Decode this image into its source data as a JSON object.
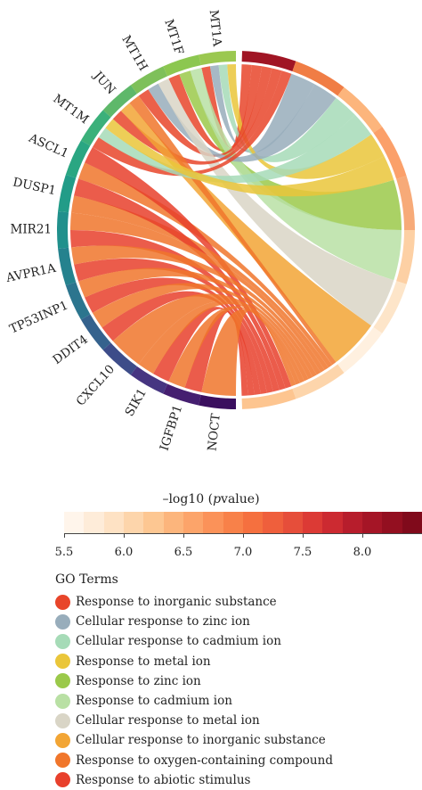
{
  "genes": [
    {
      "name": "MT1A",
      "color": "#9bc850"
    },
    {
      "name": "MT1F",
      "color": "#8cc750"
    },
    {
      "name": "MT1H",
      "color": "#7ec05a"
    },
    {
      "name": "JUN",
      "color": "#5eb86a"
    },
    {
      "name": "MT1M",
      "color": "#3bb07a"
    },
    {
      "name": "ASCL1",
      "color": "#2aa682"
    },
    {
      "name": "DUSP1",
      "color": "#229c88"
    },
    {
      "name": "MIR21",
      "color": "#20908c"
    },
    {
      "name": "AVPR1A",
      "color": "#25828e"
    },
    {
      "name": "TP53INP1",
      "color": "#2c758e"
    },
    {
      "name": "DDIT4",
      "color": "#35628d"
    },
    {
      "name": "CXCL10",
      "color": "#3d4c89"
    },
    {
      "name": "SIK1",
      "color": "#463581"
    },
    {
      "name": "IGFBP1",
      "color": "#451f70"
    },
    {
      "name": "NOCT",
      "color": "#3a0f5e"
    }
  ],
  "go_terms": [
    {
      "name": "Response to inorganic substance",
      "color": "#e8452a"
    },
    {
      "name": "Cellular response to zinc ion",
      "color": "#98adbb"
    },
    {
      "name": "Cellular response to cadmium ion",
      "color": "#a6dbb7"
    },
    {
      "name": "Response to metal ion",
      "color": "#eac63a"
    },
    {
      "name": "Response to zinc ion",
      "color": "#9bc94a"
    },
    {
      "name": "Response to cadmium ion",
      "color": "#b9e0a4"
    },
    {
      "name": "Cellular response to metal ion",
      "color": "#d9d5c6"
    },
    {
      "name": "Cellular response to inorganic substance",
      "color": "#f2a535"
    },
    {
      "name": "Response to oxygen-containing compound",
      "color": "#f0762b"
    },
    {
      "name": "Response to abiotic stimulus",
      "color": "#e8402c"
    }
  ],
  "colorbar": {
    "title_prefix": "–log10 (",
    "title_italic": "p",
    "title_suffix": "value)",
    "min": 5.5,
    "max": 8.5,
    "tick_values": [
      5.5,
      6.0,
      6.5,
      7.0,
      7.5,
      8.0
    ],
    "tick_labels": [
      "5.5",
      "6.0",
      "6.5",
      "7.0",
      "7.5",
      "8.0"
    ],
    "colors": [
      "#fff5eb",
      "#feecd9",
      "#fee2c4",
      "#fdd5ab",
      "#fdc792",
      "#fcb57c",
      "#fca46a",
      "#fb9259",
      "#f88149",
      "#f5703f",
      "#ef5f3c",
      "#e64e3a",
      "#dc3a35",
      "#cc2a31",
      "#b71d2c",
      "#a51526",
      "#930f20",
      "#800a1b"
    ]
  },
  "legend": {
    "title": "GO Terms"
  }
}
